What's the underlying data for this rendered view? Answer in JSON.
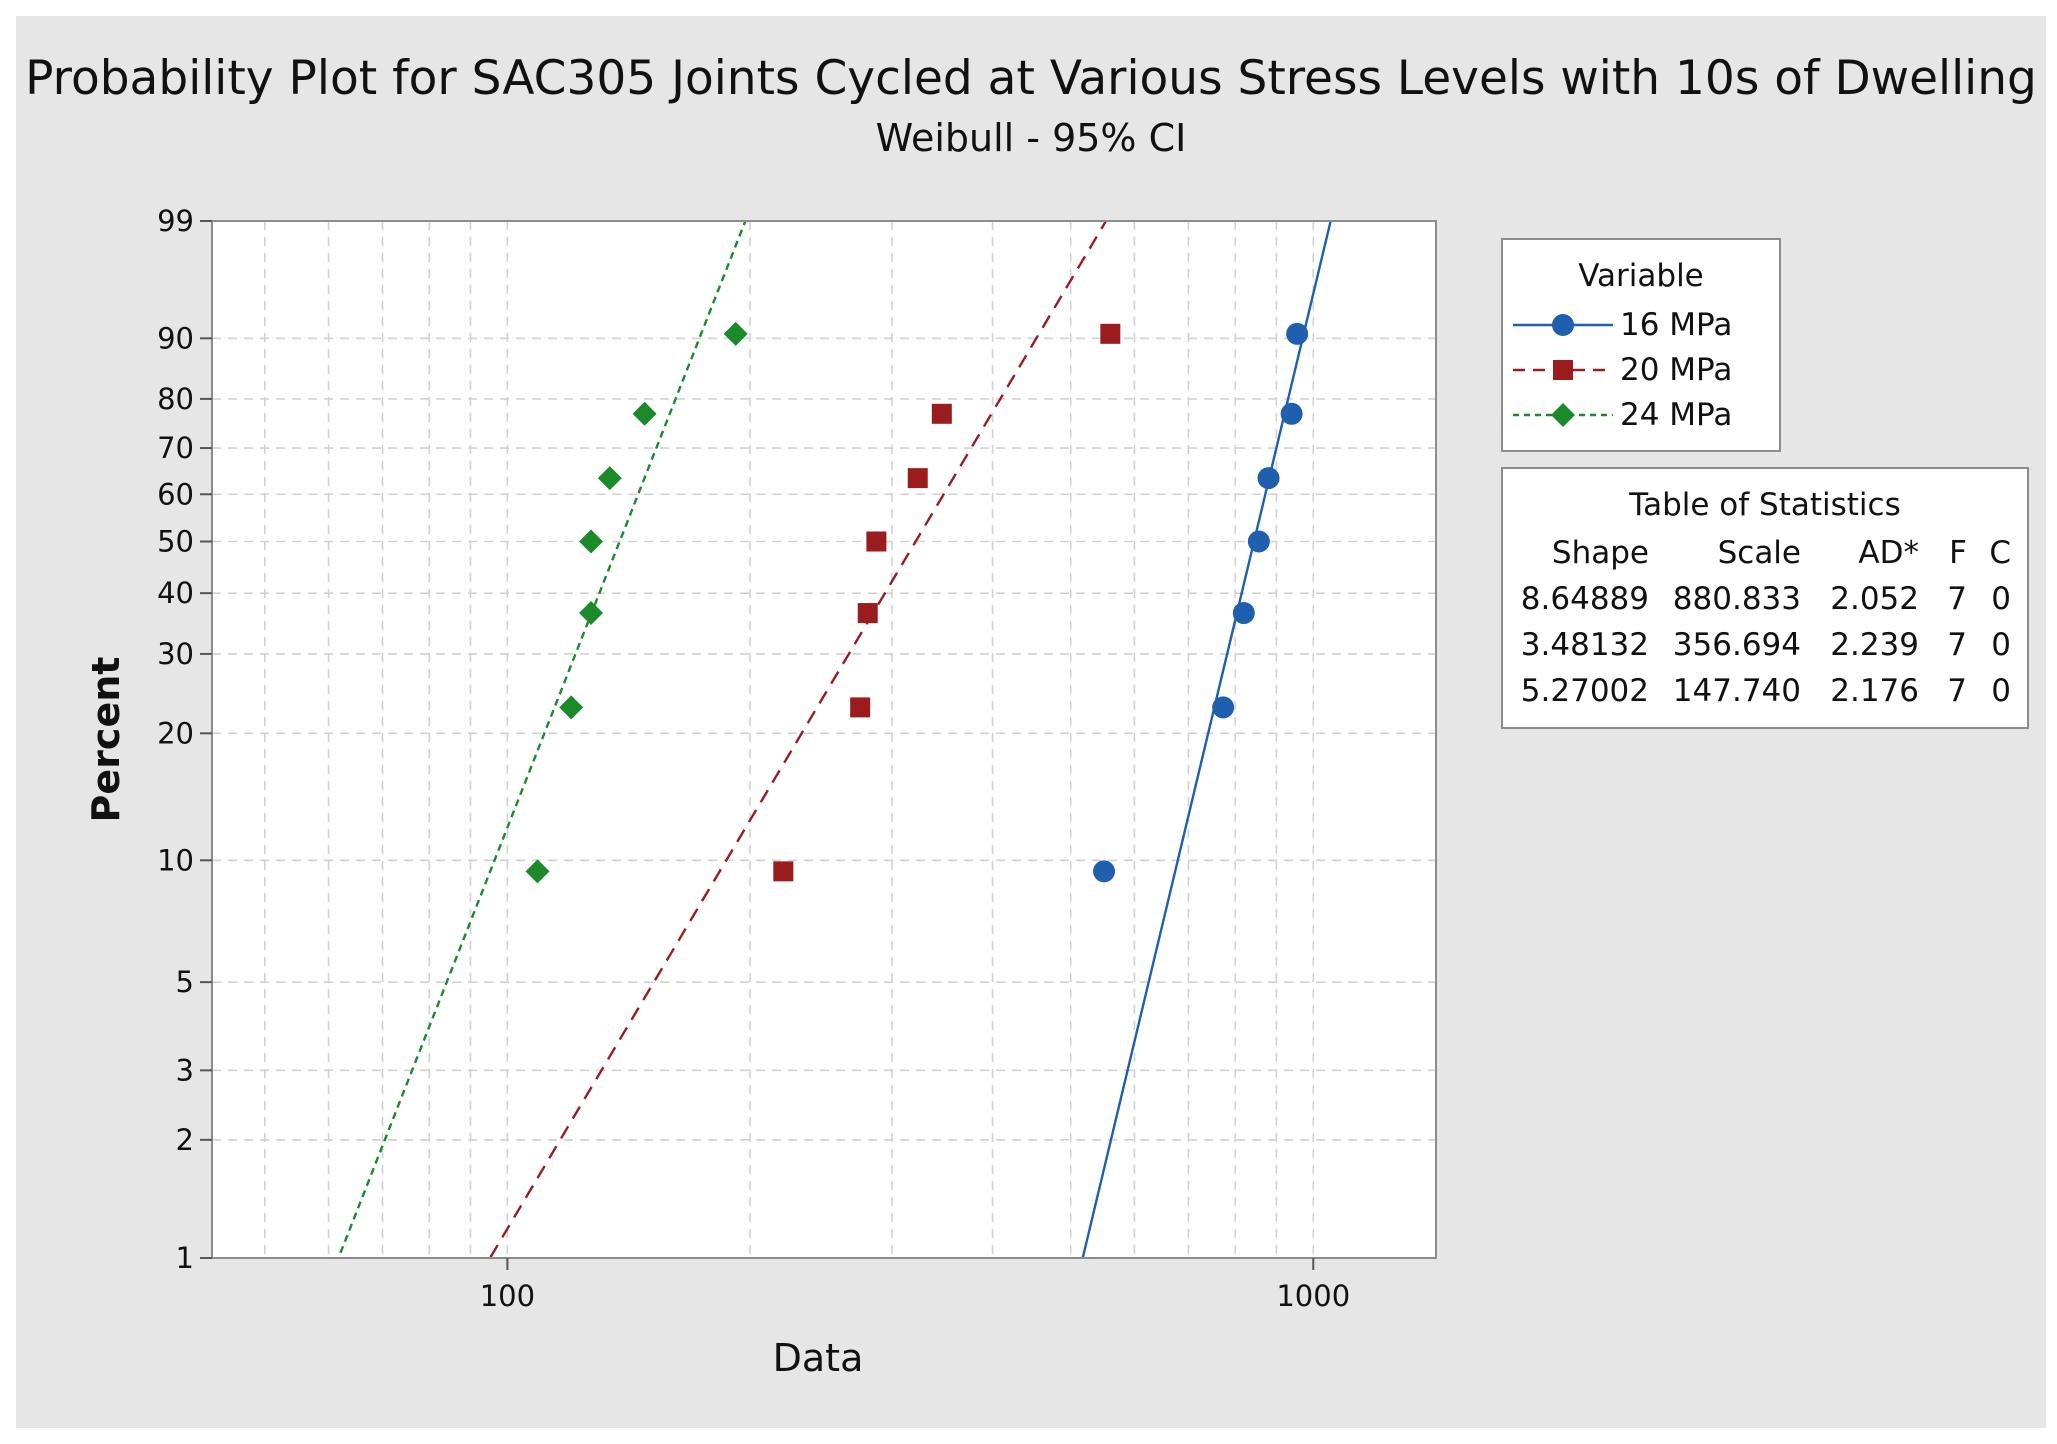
{
  "chart_data": {
    "type": "scatter",
    "title": "Probability Plot for SAC305 Joints Cycled at Various Stress Levels with 10s of Dwelling",
    "subtitle": "Weibull - 95% CI",
    "xlabel": "Data",
    "ylabel": "Percent",
    "xscale": "log",
    "yscale": "weibull",
    "xlim": [
      43,
      1420
    ],
    "ylim": [
      1,
      99
    ],
    "x_ticks": [
      100,
      1000
    ],
    "x_tick_labels": [
      "100",
      "1000"
    ],
    "y_ticks": [
      1,
      2,
      3,
      5,
      10,
      20,
      30,
      40,
      50,
      60,
      70,
      80,
      90,
      99
    ],
    "y_tick_labels": [
      "1",
      "2",
      "3",
      "5",
      "10",
      "20",
      "30",
      "40",
      "50",
      "60",
      "70",
      "80",
      "90",
      "99"
    ],
    "grid": true,
    "legend_title": "Variable",
    "series": [
      {
        "name": "16 MPa",
        "color": "#1f5fae",
        "marker": "circle",
        "line": "solid",
        "shape": 8.64889,
        "scale": 880.833,
        "x": [
          550,
          773,
          820,
          856,
          880,
          940,
          955
        ],
        "y": [
          9.4,
          22.9,
          36.5,
          50,
          63.5,
          77.1,
          90.6
        ]
      },
      {
        "name": "20 MPa",
        "color": "#9b1c1c",
        "marker": "square",
        "line": "dashed",
        "shape": 3.48132,
        "scale": 356.694,
        "x": [
          220,
          274,
          280,
          287,
          323,
          346,
          560
        ],
        "y": [
          9.4,
          22.9,
          36.5,
          50,
          63.5,
          77.1,
          90.6
        ]
      },
      {
        "name": "24 MPa",
        "color": "#1a8a2a",
        "marker": "diamond",
        "line": "dotted",
        "shape": 5.27002,
        "scale": 147.74,
        "x": [
          109,
          120,
          127,
          127,
          134,
          148,
          192
        ],
        "y": [
          9.4,
          22.9,
          36.5,
          50,
          63.5,
          77.1,
          90.6
        ]
      }
    ],
    "stats_table": {
      "title": "Table of Statistics",
      "columns": [
        "Shape",
        "Scale",
        "AD*",
        "F",
        "C"
      ],
      "rows": [
        [
          "8.64889",
          "880.833",
          "2.052",
          "7",
          "0"
        ],
        [
          "3.48132",
          "356.694",
          "2.239",
          "7",
          "0"
        ],
        [
          "5.27002",
          "147.740",
          "2.176",
          "7",
          "0"
        ]
      ]
    }
  }
}
